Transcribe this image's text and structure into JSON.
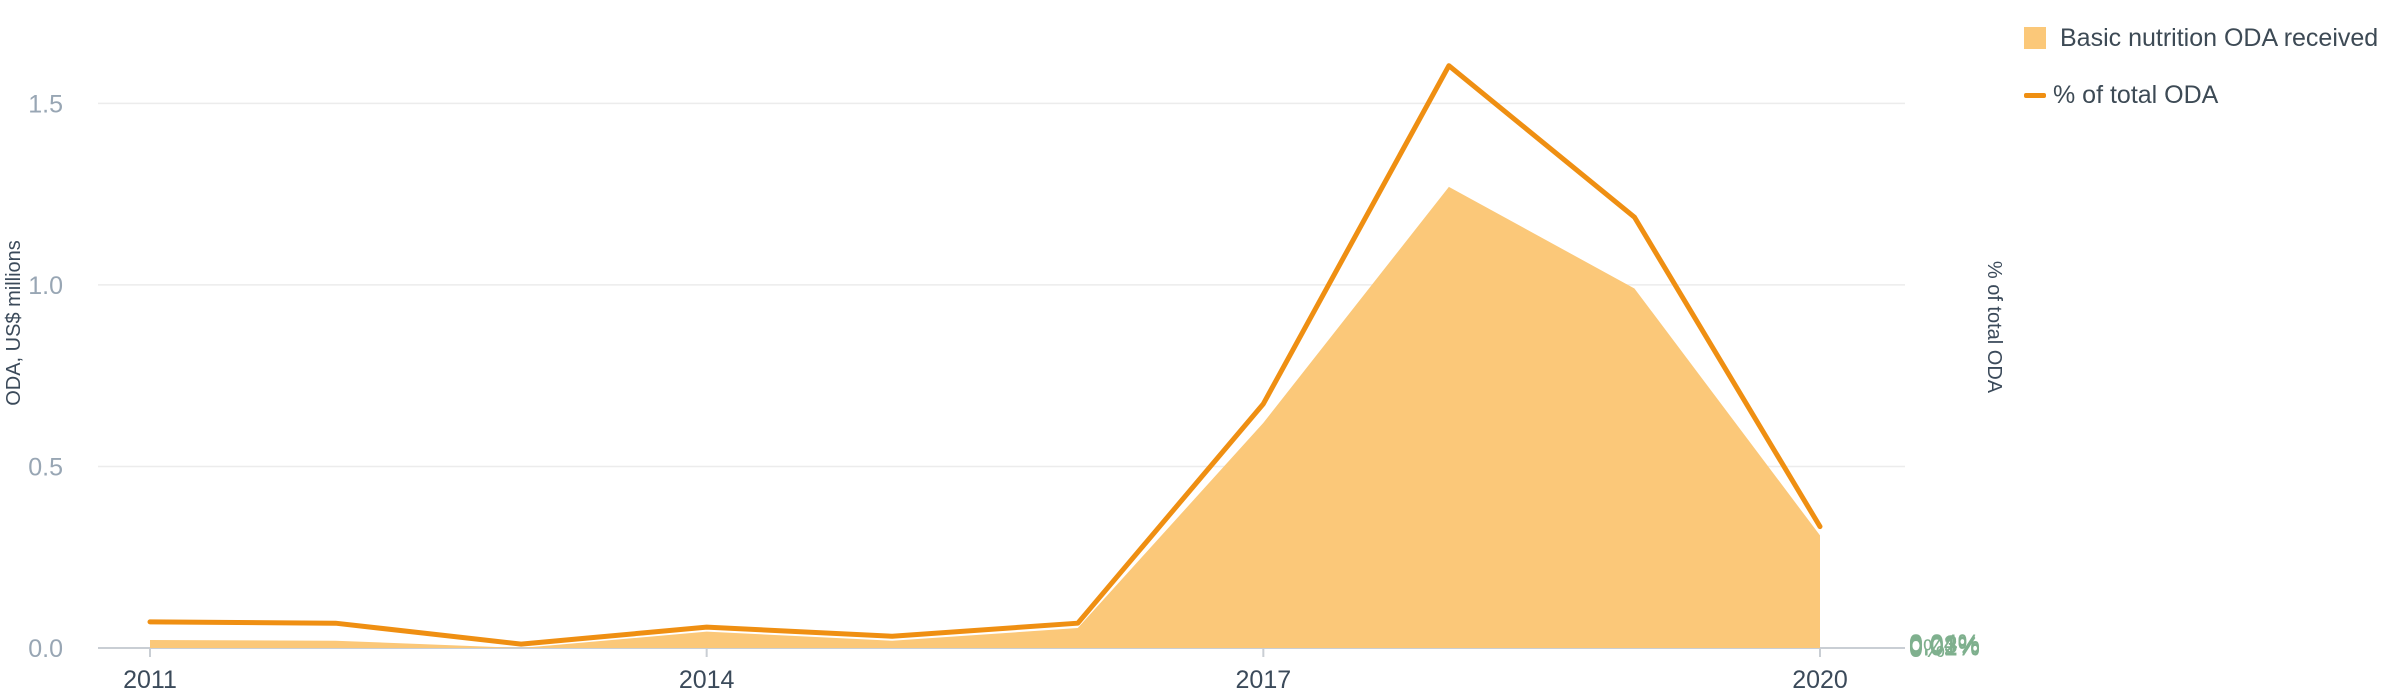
{
  "chart_data": {
    "type": "area",
    "title": "",
    "x": [
      2011,
      2012,
      2013,
      2014,
      2015,
      2016,
      2017,
      2018,
      2019,
      2020
    ],
    "x_ticks": [
      "2011",
      "2014",
      "2017",
      "2020"
    ],
    "ylabel": "ODA, US$ millions",
    "ylabel_right": "% of total ODA",
    "ylim": [
      0,
      1.6
    ],
    "ylim_right": [
      0,
      0.0445
    ],
    "y_ticks": [
      "0.0",
      "0.5",
      "1.0",
      "1.5"
    ],
    "y_ticks_right": [
      "0%",
      "0.01%",
      "0.02%",
      "0.03%",
      "0.04%"
    ],
    "series": [
      {
        "name": "Basic nutrition ODA received",
        "type": "area",
        "axis": "left",
        "color": "#fbc879",
        "values": [
          0.022,
          0.02,
          0.0,
          0.045,
          0.02,
          0.055,
          0.62,
          1.27,
          0.99,
          0.31
        ]
      },
      {
        "name": "% of total ODA",
        "type": "line",
        "axis": "right",
        "color": "#ef8f12",
        "values": [
          0.002,
          0.0019,
          0.0003,
          0.0016,
          0.0009,
          0.0019,
          0.0187,
          0.0446,
          0.033,
          0.0093
        ]
      }
    ],
    "grid": true,
    "legend_position": "top-right"
  }
}
